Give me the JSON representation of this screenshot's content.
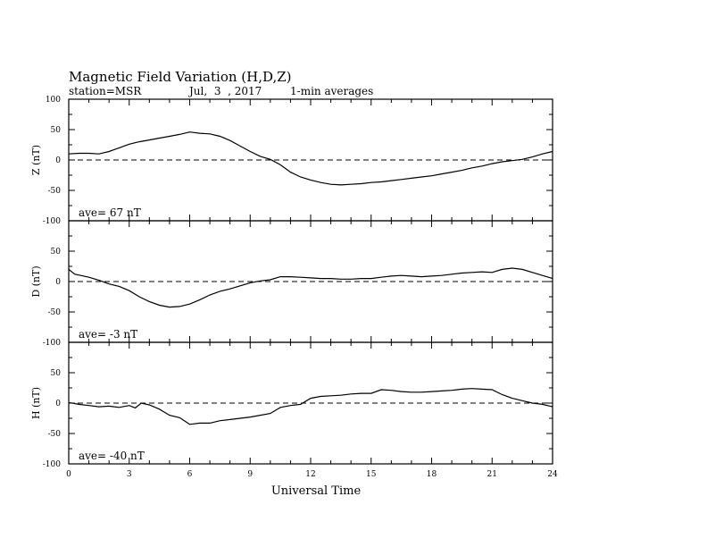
{
  "chart_data": {
    "type": "line",
    "title": "Magnetic Field Variation (H,D,Z)",
    "subtitle": {
      "station": "station=MSR",
      "date": "Jul,  3  , 2017",
      "averaging": "1-min averages"
    },
    "xlabel": "Universal Time",
    "xlim": [
      0,
      24
    ],
    "x_ticks": [
      0,
      3,
      6,
      9,
      12,
      15,
      18,
      21,
      24
    ],
    "x_tick_labels": [
      "0",
      "3",
      "6",
      "9",
      "12",
      "15",
      "18",
      "21",
      "24"
    ],
    "grid": false,
    "panels": [
      {
        "ylabel": "Z (nT)",
        "ylim": [
          -100,
          100
        ],
        "y_ticks": [
          100,
          50,
          0,
          -50,
          -100
        ],
        "y_tick_labels": [
          "100",
          "50",
          "0",
          "-50",
          "-100"
        ],
        "annotation": "ave= 67    nT",
        "series": {
          "x": [
            0,
            0.5,
            1,
            1.5,
            2,
            2.5,
            3,
            3.5,
            4,
            4.5,
            5,
            5.5,
            6,
            6.5,
            7,
            7.5,
            8,
            8.5,
            9,
            9.5,
            10,
            10.5,
            11,
            11.5,
            12,
            12.5,
            13,
            13.5,
            14,
            14.5,
            15,
            15.5,
            16,
            16.5,
            17,
            17.5,
            18,
            18.5,
            19,
            19.5,
            20,
            20.5,
            21,
            21.5,
            22,
            22.5,
            23,
            23.5,
            24
          ],
          "y": [
            10,
            11,
            11,
            10,
            14,
            20,
            26,
            30,
            33,
            36,
            39,
            42,
            46,
            44,
            43,
            39,
            32,
            23,
            14,
            6,
            1,
            -8,
            -20,
            -28,
            -33,
            -37,
            -40,
            -41,
            -40,
            -39,
            -37,
            -36,
            -34,
            -32,
            -30,
            -28,
            -26,
            -23,
            -20,
            -17,
            -13,
            -10,
            -6,
            -3,
            -1,
            1,
            5,
            10,
            14
          ]
        }
      },
      {
        "ylabel": "D (nT)",
        "ylim": [
          -100,
          100
        ],
        "y_ticks": [
          100,
          50,
          0,
          -50,
          -100
        ],
        "y_tick_labels": [
          "100",
          "50",
          "0",
          "-50",
          "-100"
        ],
        "annotation": "ave= -3     nT",
        "series": {
          "x": [
            0,
            0.3,
            0.6,
            1,
            1.5,
            2,
            2.5,
            3,
            3.5,
            4,
            4.5,
            5,
            5.5,
            6,
            6.5,
            7,
            7.5,
            8,
            8.5,
            9,
            9.5,
            10,
            10.5,
            11,
            11.5,
            12,
            12.5,
            13,
            13.5,
            14,
            14.5,
            15,
            15.5,
            16,
            16.5,
            17,
            17.5,
            18,
            18.5,
            19,
            19.5,
            20,
            20.5,
            21,
            21.5,
            22,
            22.5,
            23,
            23.5,
            24
          ],
          "y": [
            20,
            12,
            10,
            7,
            2,
            -4,
            -8,
            -15,
            -25,
            -33,
            -39,
            -42,
            -41,
            -37,
            -30,
            -22,
            -16,
            -12,
            -7,
            -2,
            1,
            3,
            8,
            8,
            7,
            6,
            5,
            5,
            4,
            4,
            5,
            5,
            7,
            9,
            10,
            9,
            8,
            9,
            10,
            12,
            14,
            15,
            16,
            15,
            20,
            22,
            20,
            15,
            10,
            5
          ]
        }
      },
      {
        "ylabel": "H (nT)",
        "ylim": [
          -100,
          100
        ],
        "y_ticks": [
          100,
          50,
          0,
          -50,
          -100
        ],
        "y_tick_labels": [
          "100",
          "50",
          "0",
          "-50",
          "-100"
        ],
        "annotation": "ave= -40   nT",
        "series": {
          "x": [
            0,
            0.5,
            1,
            1.5,
            2,
            2.5,
            3,
            3.3,
            3.6,
            4,
            4.5,
            5,
            5.5,
            6,
            6.5,
            7,
            7.5,
            8,
            8.5,
            9,
            9.5,
            10,
            10.5,
            11,
            11.5,
            12,
            12.5,
            13,
            13.5,
            14,
            14.5,
            15,
            15.5,
            16,
            16.5,
            17,
            17.5,
            18,
            18.5,
            19,
            19.5,
            20,
            20.5,
            21,
            21.5,
            22,
            22.5,
            23,
            23.5,
            24
          ],
          "y": [
            1,
            -2,
            -4,
            -6,
            -5,
            -7,
            -4,
            -8,
            0,
            -3,
            -10,
            -20,
            -24,
            -35,
            -33,
            -33,
            -29,
            -27,
            -25,
            -23,
            -20,
            -17,
            -7,
            -4,
            -2,
            8,
            11,
            12,
            13,
            15,
            16,
            16,
            22,
            21,
            19,
            18,
            18,
            19,
            20,
            21,
            23,
            24,
            23,
            22,
            14,
            8,
            4,
            0,
            -2,
            -6
          ]
        }
      }
    ]
  }
}
